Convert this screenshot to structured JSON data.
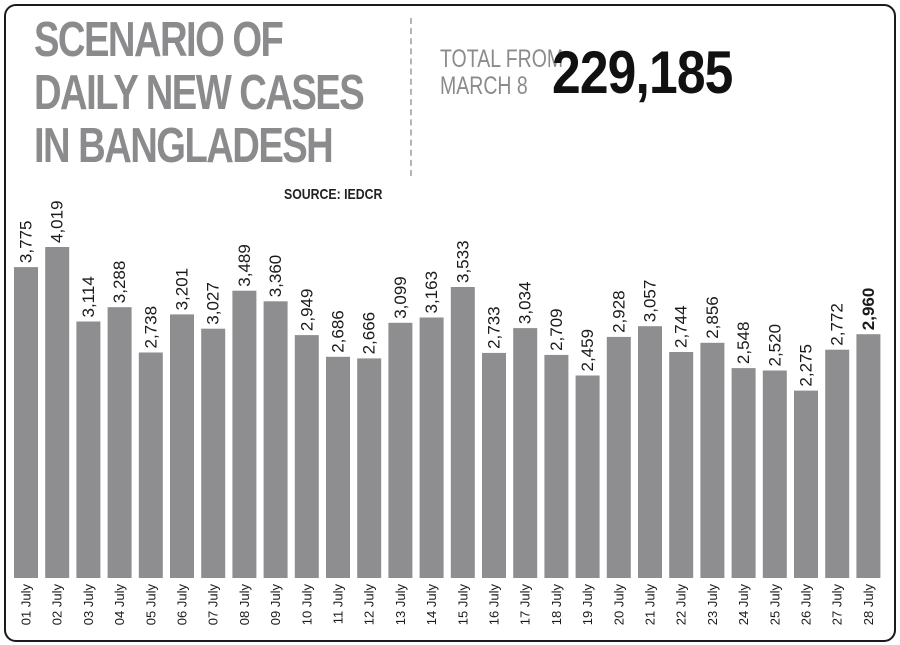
{
  "header": {
    "title_lines": [
      "SCENARIO OF",
      "DAILY NEW CASES",
      "IN BANGLADESH"
    ],
    "source": "SOURCE: IEDCR",
    "total_label_lines": [
      "TOTAL FROM",
      "MARCH 8"
    ],
    "total_value": "229,185"
  },
  "chart_data": {
    "type": "bar",
    "title": "SCENARIO OF DAILY NEW CASES IN BANGLADESH",
    "categories": [
      "01 July",
      "02 July",
      "03 July",
      "04 July",
      "05 July",
      "06 July",
      "07 July",
      "08 July",
      "09 July",
      "10 July",
      "11 July",
      "12 July",
      "13 July",
      "14 July",
      "15 July",
      "16 July",
      "17 July",
      "18 July",
      "19 July",
      "20 July",
      "21 July",
      "22 July",
      "23 July",
      "24 July",
      "25 July",
      "26 July",
      "27 July",
      "28 July"
    ],
    "values": [
      3775,
      4019,
      3114,
      3288,
      2738,
      3201,
      3027,
      3489,
      3360,
      2949,
      2686,
      2666,
      3099,
      3163,
      3533,
      2733,
      3034,
      2709,
      2459,
      2928,
      3057,
      2744,
      2856,
      2548,
      2520,
      2275,
      2772,
      2960
    ],
    "labels": [
      "3,775",
      "4,019",
      "3,114",
      "3,288",
      "2,738",
      "3,201",
      "3,027",
      "3,489",
      "3,360",
      "2,949",
      "2,686",
      "2,666",
      "3,099",
      "3,163",
      "3,533",
      "2,733",
      "3,034",
      "2,709",
      "2,459",
      "2,928",
      "3,057",
      "2,744",
      "2,856",
      "2,548",
      "2,520",
      "2,275",
      "2,772",
      "2,960"
    ],
    "highlight_index": 27,
    "bar_color": "#8e8e90",
    "ylim": [
      0,
      4019
    ]
  }
}
